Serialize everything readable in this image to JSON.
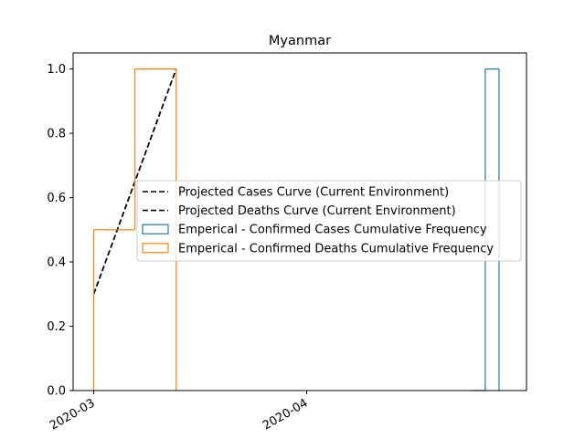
{
  "chart_data": {
    "type": "line",
    "title": "Myanmar",
    "xlabel": "",
    "ylabel": "",
    "x_axis": "date",
    "xlim": [
      "2020-02-27",
      "2020-05-03"
    ],
    "ylim": [
      0,
      1.05
    ],
    "x_ticks": [
      {
        "value": "2020-03-01",
        "label": "2020-03"
      },
      {
        "value": "2020-04-01",
        "label": "2020-04"
      }
    ],
    "y_ticks": [
      0.0,
      0.2,
      0.4,
      0.6,
      0.8,
      1.0
    ],
    "y_tick_labels": [
      "0.0",
      "0.2",
      "0.4",
      "0.6",
      "0.8",
      "1.0"
    ],
    "grid": false,
    "legend_position": "center-right",
    "series": [
      {
        "name": "Projected Cases Curve (Current Environment)",
        "kind": "line",
        "style": "dashed",
        "color": "#000000",
        "x": [
          "2020-03-01",
          "2020-03-13"
        ],
        "y": [
          0.3,
          1.0
        ]
      },
      {
        "name": "Projected Deaths Curve (Current Environment)",
        "kind": "line",
        "style": "dashed",
        "color": "#000000",
        "x": [
          "2020-03-01",
          "2020-03-13"
        ],
        "y": [
          0.3,
          1.0
        ]
      },
      {
        "name": "Emperical - Confirmed Cases Cumulative Frequency",
        "kind": "step-histogram",
        "color": "#1f77b4",
        "x": [
          "2020-04-25",
          "2020-04-27",
          "2020-04-29"
        ],
        "y": [
          0.0,
          1.0
        ]
      },
      {
        "name": "Emperical - Confirmed Deaths Cumulative Frequency",
        "kind": "step-histogram",
        "color": "#ff7f0e",
        "x": [
          "2020-03-01",
          "2020-03-07",
          "2020-03-13"
        ],
        "y": [
          0.5,
          1.0
        ]
      }
    ]
  }
}
